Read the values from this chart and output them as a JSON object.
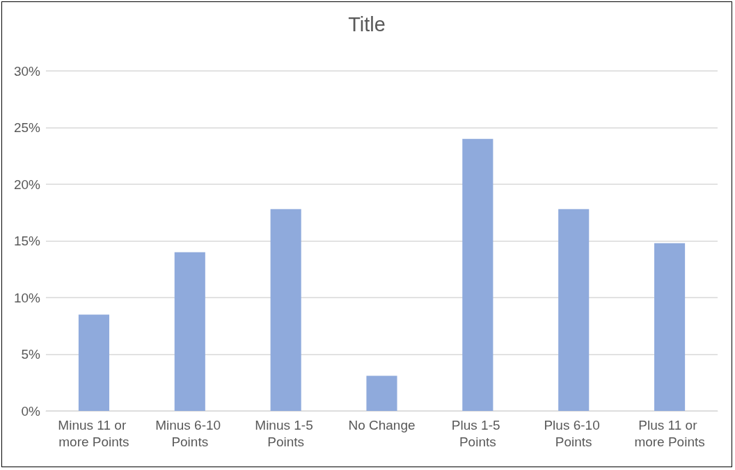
{
  "chart_data": {
    "type": "bar",
    "title": "Title",
    "categories": [
      "Minus 11 or more Points",
      "Minus 6-10 Points",
      "Minus 1-5 Points",
      "No Change",
      "Plus 1-5 Points",
      "Plus 6-10 Points",
      "Plus 11 or more Points"
    ],
    "values": [
      8.5,
      14,
      17.8,
      3.1,
      24,
      17.8,
      14.8
    ],
    "color": "#8faadc",
    "ylim": [
      0,
      30
    ],
    "yticks": [
      {
        "value": 0,
        "label": "0%"
      },
      {
        "value": 5,
        "label": "5%"
      },
      {
        "value": 10,
        "label": "10%"
      },
      {
        "value": 15,
        "label": "15%"
      },
      {
        "value": 20,
        "label": "20%"
      },
      {
        "value": 25,
        "label": "25%"
      },
      {
        "value": 30,
        "label": "30%"
      }
    ],
    "grid": "y"
  }
}
